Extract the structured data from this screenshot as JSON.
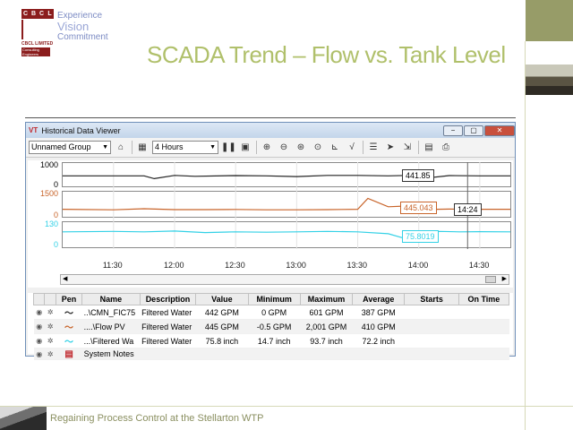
{
  "slide": {
    "logo_letters": [
      "C",
      "B",
      "C",
      "L"
    ],
    "logo_name": "CBCL LIMITED",
    "logo_tag": "Consulting Engineers",
    "tagline": [
      "Experience",
      "Vision",
      "Commitment"
    ],
    "title": "SCADA Trend – Flow vs. Tank Level",
    "footer": "Regaining Process Control at the Stellarton WTP"
  },
  "window": {
    "title": "Historical Data Viewer",
    "app_icon": "VT",
    "buttons": [
      "−",
      "▢",
      "✕"
    ]
  },
  "toolbar": {
    "group_value": "Unnamed Group",
    "period_value": "4 Hours",
    "icons": [
      "tag-icon",
      "calendar-icon",
      "pause-icon",
      "calendar-7-icon",
      "zoom-in-icon",
      "zoom-out-icon",
      "zoom-fit-icon",
      "zoom-reset-icon",
      "axis-icon",
      "cursor-value-icon",
      "layout-icon",
      "pointer-icon",
      "export-icon",
      "notes-icon",
      "print-icon"
    ]
  },
  "chart_data": [
    {
      "type": "line",
      "name": "..\\CMN_FIC75",
      "ylim": [
        0,
        1000
      ],
      "ytick_labels": [
        "1000",
        "0"
      ],
      "color": "#222222",
      "x": [
        "11:05",
        "11:30",
        "11:45",
        "11:50",
        "12:00",
        "12:10",
        "12:30",
        "12:45",
        "13:00",
        "13:15",
        "13:30",
        "13:45",
        "13:55",
        "14:00",
        "14:15",
        "14:30",
        "14:45"
      ],
      "values": [
        450,
        450,
        450,
        330,
        470,
        430,
        460,
        450,
        420,
        470,
        470,
        450,
        470,
        320,
        460,
        450,
        450
      ],
      "cursor_label": "441.85"
    },
    {
      "type": "line",
      "name": "....\\Flow PV",
      "ylim": [
        0,
        1500
      ],
      "ytick_labels": [
        "1500",
        "0"
      ],
      "color": "#c8642a",
      "x": [
        "11:05",
        "11:30",
        "11:45",
        "12:00",
        "12:15",
        "12:30",
        "12:45",
        "13:00",
        "13:15",
        "13:30",
        "13:35",
        "13:45",
        "13:55",
        "14:00",
        "14:15",
        "14:30",
        "14:45"
      ],
      "values": [
        450,
        420,
        480,
        430,
        430,
        440,
        420,
        420,
        430,
        450,
        1100,
        600,
        650,
        430,
        460,
        450,
        450
      ],
      "cursor_label": "445.043"
    },
    {
      "type": "line",
      "name": "...\\Filtered WaFiltered Water",
      "ylim": [
        0,
        130
      ],
      "ytick_labels": [
        "130",
        "0"
      ],
      "color": "#33d1e6",
      "x": [
        "11:05",
        "11:30",
        "11:45",
        "12:00",
        "12:15",
        "12:30",
        "12:45",
        "13:00",
        "13:15",
        "13:30",
        "13:45",
        "13:55",
        "14:00",
        "14:10",
        "14:20",
        "14:30",
        "14:45"
      ],
      "values": [
        80,
        82,
        80,
        84,
        76,
        80,
        78,
        80,
        82,
        80,
        70,
        40,
        72,
        82,
        80,
        81,
        80
      ],
      "cursor_label": "75.8019"
    }
  ],
  "cursor_time": "14:24",
  "xaxis_labels": [
    "11:30",
    "12:00",
    "12:30",
    "13:00",
    "13:30",
    "14:00",
    "14:30"
  ],
  "grid": {
    "headers": [
      "",
      "",
      "Pen",
      "Name",
      "Description",
      "Value",
      "Minimum",
      "Maximum",
      "Average",
      "Starts",
      "On Time"
    ],
    "rows": [
      {
        "name": "..\\CMN_FIC75",
        "description": "Filtered Water",
        "value": "442 GPM",
        "min": "0 GPM",
        "max": "601 GPM",
        "avg": "387 GPM",
        "color": "#222222"
      },
      {
        "name": "....\\Flow PV",
        "description": "Filtered Water",
        "value": "445 GPM",
        "min": "-0.5 GPM",
        "max": "2,001 GPM",
        "avg": "410 GPM",
        "color": "#c8642a"
      },
      {
        "name": "...\\Filtered Wa",
        "description": "Filtered Water",
        "value": "75.8 inch",
        "min": "14.7 inch",
        "max": "93.7 inch",
        "avg": "72.2 inch",
        "color": "#33d1e6"
      },
      {
        "name": "System Notes",
        "description": "",
        "value": "",
        "min": "",
        "max": "",
        "avg": "",
        "color": "#c0282d"
      }
    ]
  }
}
